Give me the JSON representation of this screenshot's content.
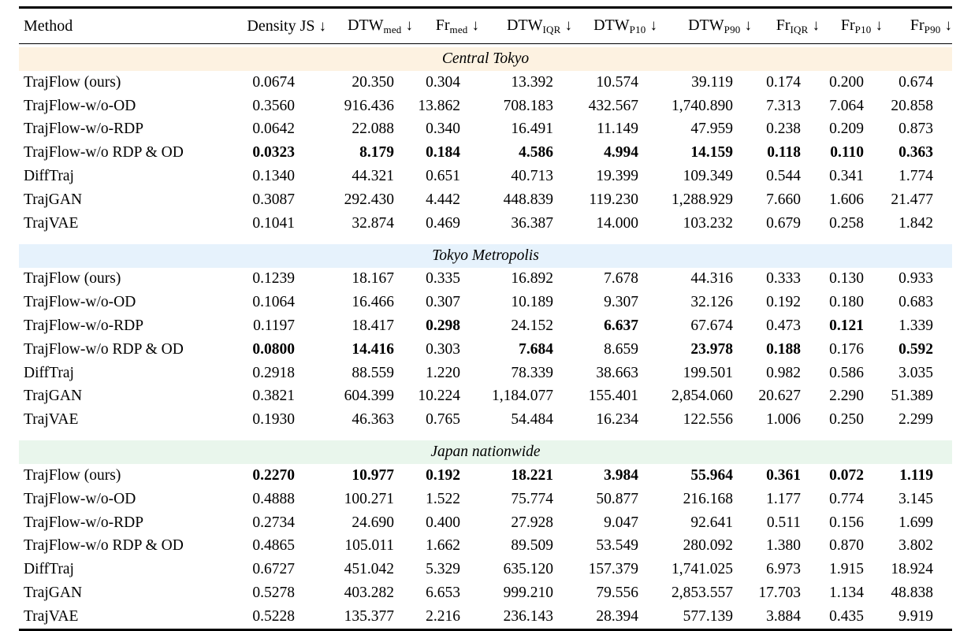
{
  "table": {
    "header": {
      "method_label": "Method",
      "metric_columns": [
        {
          "base": "Density JS",
          "sub": "",
          "arrow": "↓"
        },
        {
          "base": "DTW",
          "sub": "med",
          "arrow": "↓"
        },
        {
          "base": "Fr",
          "sub": "med",
          "arrow": "↓"
        },
        {
          "base": "DTW",
          "sub": "IQR",
          "arrow": "↓"
        },
        {
          "base": "DTW",
          "sub": "P10",
          "arrow": "↓"
        },
        {
          "base": "DTW",
          "sub": "P90",
          "arrow": "↓"
        },
        {
          "base": "Fr",
          "sub": "IQR",
          "arrow": "↓"
        },
        {
          "base": "Fr",
          "sub": "P10",
          "arrow": "↓"
        },
        {
          "base": "Fr",
          "sub": "P90",
          "arrow": "↓"
        }
      ]
    },
    "sections": [
      {
        "title": "Central Tokyo",
        "band_color": "#fdf2e1",
        "rows": [
          {
            "method": "TrajFlow (ours)",
            "values": [
              "0.0674",
              "20.350",
              "0.304",
              "13.392",
              "10.574",
              "39.119",
              "0.174",
              "0.200",
              "0.674"
            ],
            "bold_cols": []
          },
          {
            "method": "TrajFlow-w/o-OD",
            "values": [
              "0.3560",
              "916.436",
              "13.862",
              "708.183",
              "432.567",
              "1,740.890",
              "7.313",
              "7.064",
              "20.858"
            ],
            "bold_cols": []
          },
          {
            "method": "TrajFlow-w/o-RDP",
            "values": [
              "0.0642",
              "22.088",
              "0.340",
              "16.491",
              "11.149",
              "47.959",
              "0.238",
              "0.209",
              "0.873"
            ],
            "bold_cols": []
          },
          {
            "method": "TrajFlow-w/o RDP & OD",
            "values": [
              "0.0323",
              "8.179",
              "0.184",
              "4.586",
              "4.994",
              "14.159",
              "0.118",
              "0.110",
              "0.363"
            ],
            "bold_cols": [
              0,
              1,
              2,
              3,
              4,
              5,
              6,
              7,
              8
            ]
          },
          {
            "method": "DiffTraj",
            "values": [
              "0.1340",
              "44.321",
              "0.651",
              "40.713",
              "19.399",
              "109.349",
              "0.544",
              "0.341",
              "1.774"
            ],
            "bold_cols": []
          },
          {
            "method": "TrajGAN",
            "values": [
              "0.3087",
              "292.430",
              "4.442",
              "448.839",
              "119.230",
              "1,288.929",
              "7.660",
              "1.606",
              "21.477"
            ],
            "bold_cols": []
          },
          {
            "method": "TrajVAE",
            "values": [
              "0.1041",
              "32.874",
              "0.469",
              "36.387",
              "14.000",
              "103.232",
              "0.679",
              "0.258",
              "1.842"
            ],
            "bold_cols": []
          }
        ]
      },
      {
        "title": "Tokyo Metropolis",
        "band_color": "#e6f2fc",
        "rows": [
          {
            "method": "TrajFlow (ours)",
            "values": [
              "0.1239",
              "18.167",
              "0.335",
              "16.892",
              "7.678",
              "44.316",
              "0.333",
              "0.130",
              "0.933"
            ],
            "bold_cols": []
          },
          {
            "method": "TrajFlow-w/o-OD",
            "values": [
              "0.1064",
              "16.466",
              "0.307",
              "10.189",
              "9.307",
              "32.126",
              "0.192",
              "0.180",
              "0.683"
            ],
            "bold_cols": []
          },
          {
            "method": "TrajFlow-w/o-RDP",
            "values": [
              "0.1197",
              "18.417",
              "0.298",
              "24.152",
              "6.637",
              "67.674",
              "0.473",
              "0.121",
              "1.339"
            ],
            "bold_cols": [
              2,
              4,
              7
            ]
          },
          {
            "method": "TrajFlow-w/o RDP & OD",
            "values": [
              "0.0800",
              "14.416",
              "0.303",
              "7.684",
              "8.659",
              "23.978",
              "0.188",
              "0.176",
              "0.592"
            ],
            "bold_cols": [
              0,
              1,
              3,
              5,
              6,
              8
            ]
          },
          {
            "method": "DiffTraj",
            "values": [
              "0.2918",
              "88.559",
              "1.220",
              "78.339",
              "38.663",
              "199.501",
              "0.982",
              "0.586",
              "3.035"
            ],
            "bold_cols": []
          },
          {
            "method": "TrajGAN",
            "values": [
              "0.3821",
              "604.399",
              "10.224",
              "1,184.077",
              "155.401",
              "2,854.060",
              "20.627",
              "2.290",
              "51.389"
            ],
            "bold_cols": []
          },
          {
            "method": "TrajVAE",
            "values": [
              "0.1930",
              "46.363",
              "0.765",
              "54.484",
              "16.234",
              "122.556",
              "1.006",
              "0.250",
              "2.299"
            ],
            "bold_cols": []
          }
        ]
      },
      {
        "title": "Japan nationwide",
        "band_color": "#e9f6ec",
        "rows": [
          {
            "method": "TrajFlow (ours)",
            "values": [
              "0.2270",
              "10.977",
              "0.192",
              "18.221",
              "3.984",
              "55.964",
              "0.361",
              "0.072",
              "1.119"
            ],
            "bold_cols": [
              0,
              1,
              2,
              3,
              4,
              5,
              6,
              7,
              8
            ]
          },
          {
            "method": "TrajFlow-w/o-OD",
            "values": [
              "0.4888",
              "100.271",
              "1.522",
              "75.774",
              "50.877",
              "216.168",
              "1.177",
              "0.774",
              "3.145"
            ],
            "bold_cols": []
          },
          {
            "method": "TrajFlow-w/o-RDP",
            "values": [
              "0.2734",
              "24.690",
              "0.400",
              "27.928",
              "9.047",
              "92.641",
              "0.511",
              "0.156",
              "1.699"
            ],
            "bold_cols": []
          },
          {
            "method": "TrajFlow-w/o RDP & OD",
            "values": [
              "0.4865",
              "105.011",
              "1.662",
              "89.509",
              "53.549",
              "280.092",
              "1.380",
              "0.870",
              "3.802"
            ],
            "bold_cols": []
          },
          {
            "method": "DiffTraj",
            "values": [
              "0.6727",
              "451.042",
              "5.329",
              "635.120",
              "157.379",
              "1,741.025",
              "6.973",
              "1.915",
              "18.924"
            ],
            "bold_cols": []
          },
          {
            "method": "TrajGAN",
            "values": [
              "0.5278",
              "403.282",
              "6.653",
              "999.210",
              "79.556",
              "2,853.557",
              "17.703",
              "1.134",
              "48.838"
            ],
            "bold_cols": []
          },
          {
            "method": "TrajVAE",
            "values": [
              "0.5228",
              "135.377",
              "2.216",
              "236.143",
              "28.394",
              "577.139",
              "3.884",
              "0.435",
              "9.919"
            ],
            "bold_cols": []
          }
        ]
      }
    ]
  }
}
